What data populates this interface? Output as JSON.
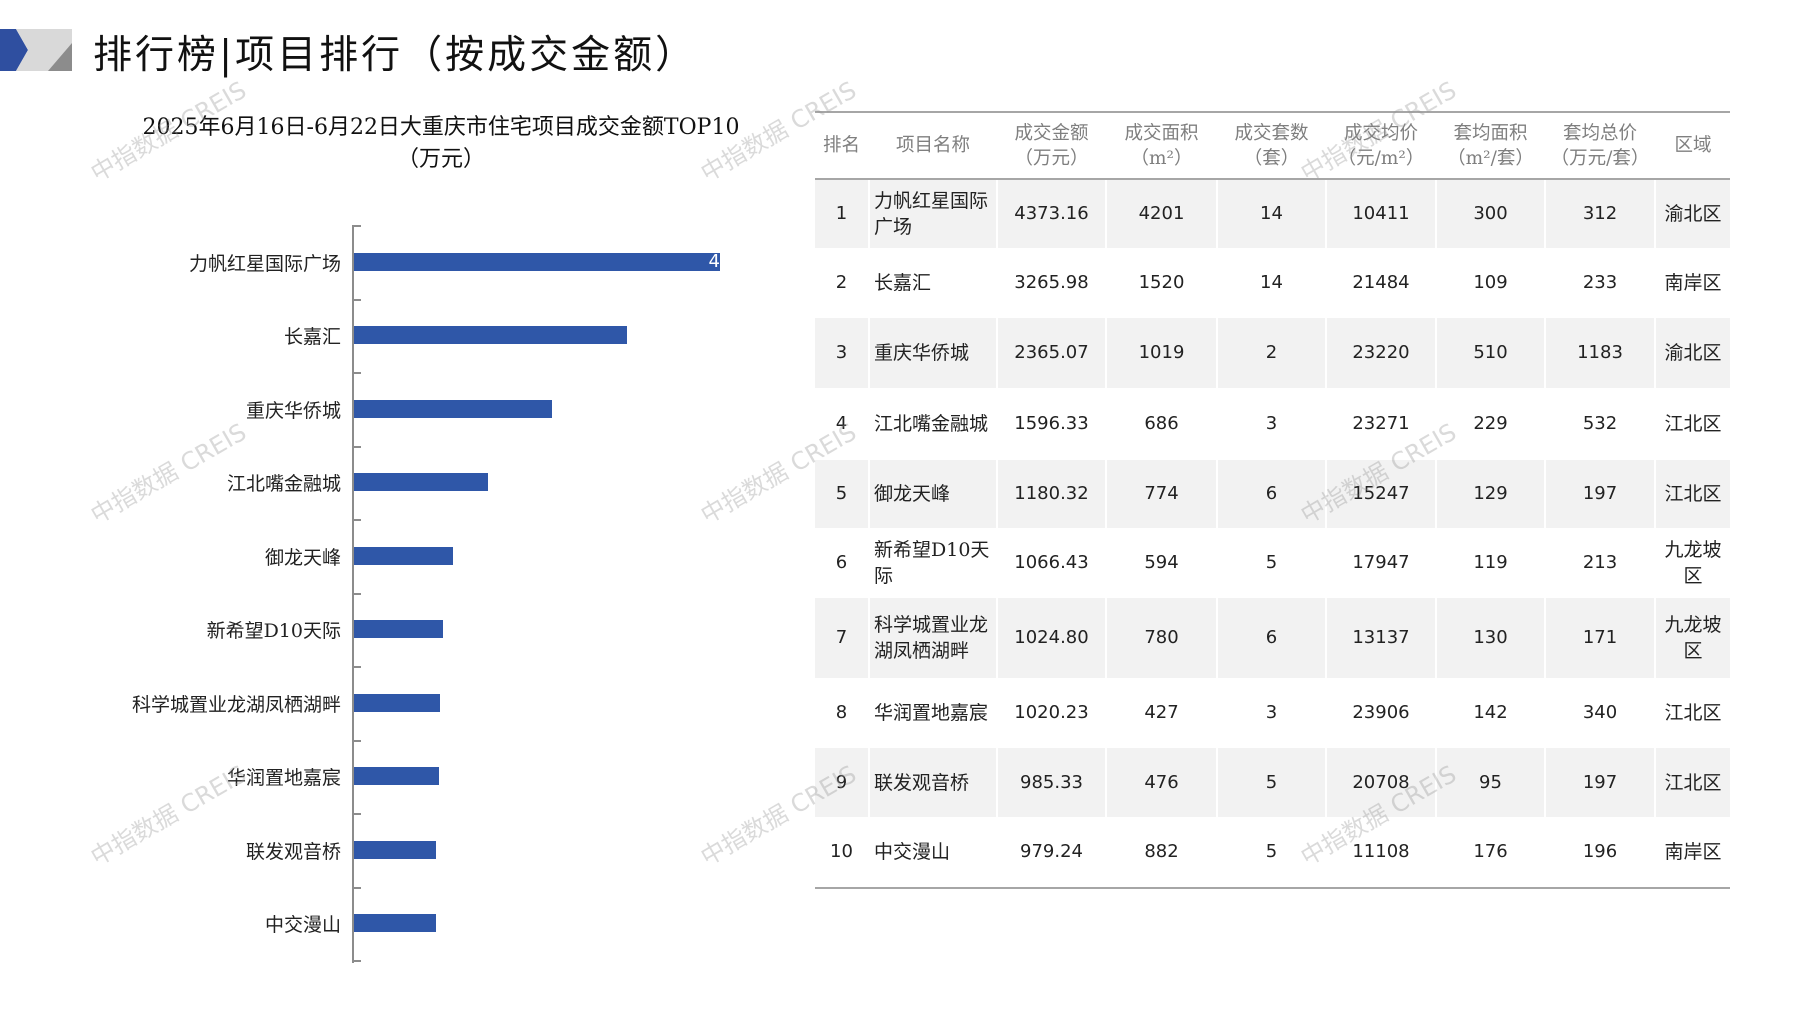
{
  "header": {
    "title": "排行榜|项目排行（按成交金额）",
    "brand_colors": {
      "blue": "#2f4fa0",
      "gray_light": "#d9d9d9",
      "gray_dark": "#8c8c8c"
    }
  },
  "watermark": "中指数据 CREIS",
  "chart_data": {
    "type": "bar",
    "orientation": "horizontal",
    "title": "2025年6月16日-6月22日大重庆市住宅项目成交金额TOP10",
    "subtitle": "（万元）",
    "categories": [
      "力帆红星国际广场",
      "长嘉汇",
      "重庆华侨城",
      "江北嘴金融城",
      "御龙天峰",
      "新希望D10天际",
      "科学城置业龙湖凤栖湖畔",
      "华润置地嘉宸",
      "联发观音桥",
      "中交漫山"
    ],
    "values": [
      4373.16,
      3265.98,
      2365.07,
      1596.33,
      1180.32,
      1066.43,
      1024.8,
      1020.23,
      985.33,
      979.24
    ],
    "visible_data_label": "4",
    "bar_color": "#2f57a8",
    "xlabel": "",
    "ylabel": ""
  },
  "table": {
    "headers": [
      [
        "排名"
      ],
      [
        "项目名称"
      ],
      [
        "成交金额",
        "（万元）"
      ],
      [
        "成交面积",
        "（m²）"
      ],
      [
        "成交套数",
        "（套）"
      ],
      [
        "成交均价",
        "（元/m²）"
      ],
      [
        "套均面积",
        "（m²/套）"
      ],
      [
        "套均总价",
        "（万元/套）"
      ],
      [
        "区域"
      ]
    ],
    "rows": [
      [
        "1",
        "力帆红星国际广场",
        "4373.16",
        "4201",
        "14",
        "10411",
        "300",
        "312",
        "渝北区"
      ],
      [
        "2",
        "长嘉汇",
        "3265.98",
        "1520",
        "14",
        "21484",
        "109",
        "233",
        "南岸区"
      ],
      [
        "3",
        "重庆华侨城",
        "2365.07",
        "1019",
        "2",
        "23220",
        "510",
        "1183",
        "渝北区"
      ],
      [
        "4",
        "江北嘴金融城",
        "1596.33",
        "686",
        "3",
        "23271",
        "229",
        "532",
        "江北区"
      ],
      [
        "5",
        "御龙天峰",
        "1180.32",
        "774",
        "6",
        "15247",
        "129",
        "197",
        "江北区"
      ],
      [
        "6",
        "新希望D10天际",
        "1066.43",
        "594",
        "5",
        "17947",
        "119",
        "213",
        "九龙坡区"
      ],
      [
        "7",
        "科学城置业龙湖凤栖湖畔",
        "1024.80",
        "780",
        "6",
        "13137",
        "130",
        "171",
        "九龙坡区"
      ],
      [
        "8",
        "华润置地嘉宸",
        "1020.23",
        "427",
        "3",
        "23906",
        "142",
        "340",
        "江北区"
      ],
      [
        "9",
        "联发观音桥",
        "985.33",
        "476",
        "5",
        "20708",
        "95",
        "197",
        "江北区"
      ],
      [
        "10",
        "中交漫山",
        "979.24",
        "882",
        "5",
        "11108",
        "176",
        "196",
        "南岸区"
      ]
    ]
  }
}
